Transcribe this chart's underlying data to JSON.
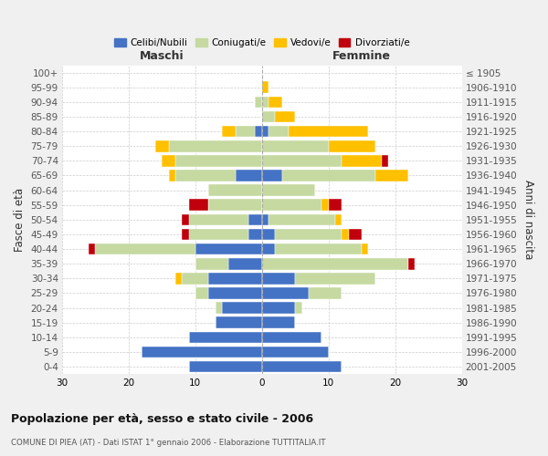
{
  "age_groups": [
    "0-4",
    "5-9",
    "10-14",
    "15-19",
    "20-24",
    "25-29",
    "30-34",
    "35-39",
    "40-44",
    "45-49",
    "50-54",
    "55-59",
    "60-64",
    "65-69",
    "70-74",
    "75-79",
    "80-84",
    "85-89",
    "90-94",
    "95-99",
    "100+"
  ],
  "birth_years": [
    "2001-2005",
    "1996-2000",
    "1991-1995",
    "1986-1990",
    "1981-1985",
    "1976-1980",
    "1971-1975",
    "1966-1970",
    "1961-1965",
    "1956-1960",
    "1951-1955",
    "1946-1950",
    "1941-1945",
    "1936-1940",
    "1931-1935",
    "1926-1930",
    "1921-1925",
    "1916-1920",
    "1911-1915",
    "1906-1910",
    "≤ 1905"
  ],
  "maschi": {
    "celibi": [
      11,
      18,
      11,
      7,
      6,
      8,
      8,
      5,
      10,
      2,
      2,
      0,
      0,
      4,
      0,
      0,
      1,
      0,
      0,
      0,
      0
    ],
    "coniugati": [
      0,
      0,
      0,
      0,
      1,
      2,
      4,
      5,
      15,
      9,
      9,
      8,
      8,
      9,
      13,
      14,
      3,
      0,
      1,
      0,
      0
    ],
    "vedovi": [
      0,
      0,
      0,
      0,
      0,
      0,
      1,
      0,
      0,
      0,
      0,
      0,
      0,
      1,
      2,
      2,
      2,
      0,
      0,
      0,
      0
    ],
    "divorziati": [
      0,
      0,
      0,
      0,
      0,
      0,
      0,
      0,
      1,
      1,
      1,
      3,
      0,
      0,
      0,
      0,
      0,
      0,
      0,
      0,
      0
    ]
  },
  "femmine": {
    "nubili": [
      12,
      10,
      9,
      5,
      5,
      7,
      5,
      0,
      2,
      2,
      1,
      0,
      0,
      3,
      0,
      0,
      1,
      0,
      0,
      0,
      0
    ],
    "coniugate": [
      0,
      0,
      0,
      0,
      1,
      5,
      12,
      22,
      13,
      10,
      10,
      9,
      8,
      14,
      12,
      10,
      3,
      2,
      1,
      0,
      0
    ],
    "vedove": [
      0,
      0,
      0,
      0,
      0,
      0,
      0,
      0,
      1,
      1,
      1,
      1,
      0,
      5,
      6,
      7,
      12,
      3,
      2,
      1,
      0
    ],
    "divorziate": [
      0,
      0,
      0,
      0,
      0,
      0,
      0,
      1,
      0,
      2,
      0,
      2,
      0,
      0,
      1,
      0,
      0,
      0,
      0,
      0,
      0
    ]
  },
  "colors": {
    "celibi": "#4472c4",
    "coniugati": "#c5d9a0",
    "vedovi": "#ffc000",
    "divorziati": "#c0000c"
  },
  "xlim": 30,
  "title": "Popolazione per età, sesso e stato civile - 2006",
  "subtitle": "COMUNE DI PIEA (AT) - Dati ISTAT 1° gennaio 2006 - Elaborazione TUTTITALIA.IT",
  "ylabel_left": "Fasce di età",
  "ylabel_right": "Anni di nascita",
  "xlabel_left": "Maschi",
  "xlabel_right": "Femmine",
  "bg_color": "#f0f0f0",
  "plot_bg": "#ffffff"
}
